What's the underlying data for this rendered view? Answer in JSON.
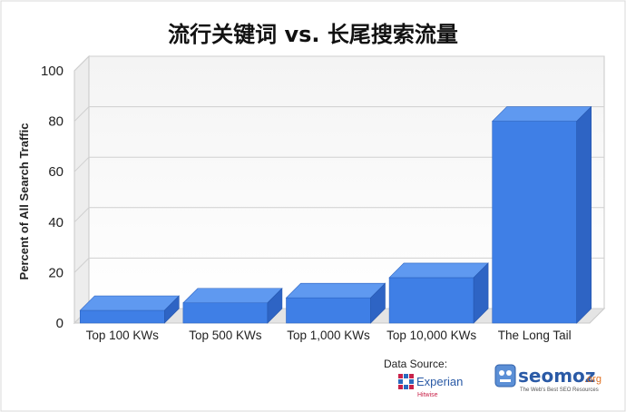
{
  "chart_data": {
    "type": "bar",
    "title": "流行关键词 vs. 长尾搜索流量",
    "ylabel": "Percent of All Search Traffic",
    "xlabel": "",
    "categories": [
      "Top 100 KWs",
      "Top 500 KWs",
      "Top 1,000 KWs",
      "Top 10,000 KWs",
      "The Long Tail"
    ],
    "values": [
      5,
      8,
      10,
      18,
      80
    ],
    "ylim": [
      0,
      100
    ],
    "yticks": [
      "0",
      "20",
      "40",
      "60",
      "80",
      "100"
    ],
    "grid": true,
    "bar_color": "#3f7fe6",
    "style": "3d"
  },
  "source": {
    "label": "Data Source:",
    "experian_name": "Experian",
    "experian_sub": "Hitwise",
    "seomoz_name": "seomoz",
    "seomoz_tld": ".org",
    "seomoz_tagline": "The Web's Best SEO Resources"
  }
}
